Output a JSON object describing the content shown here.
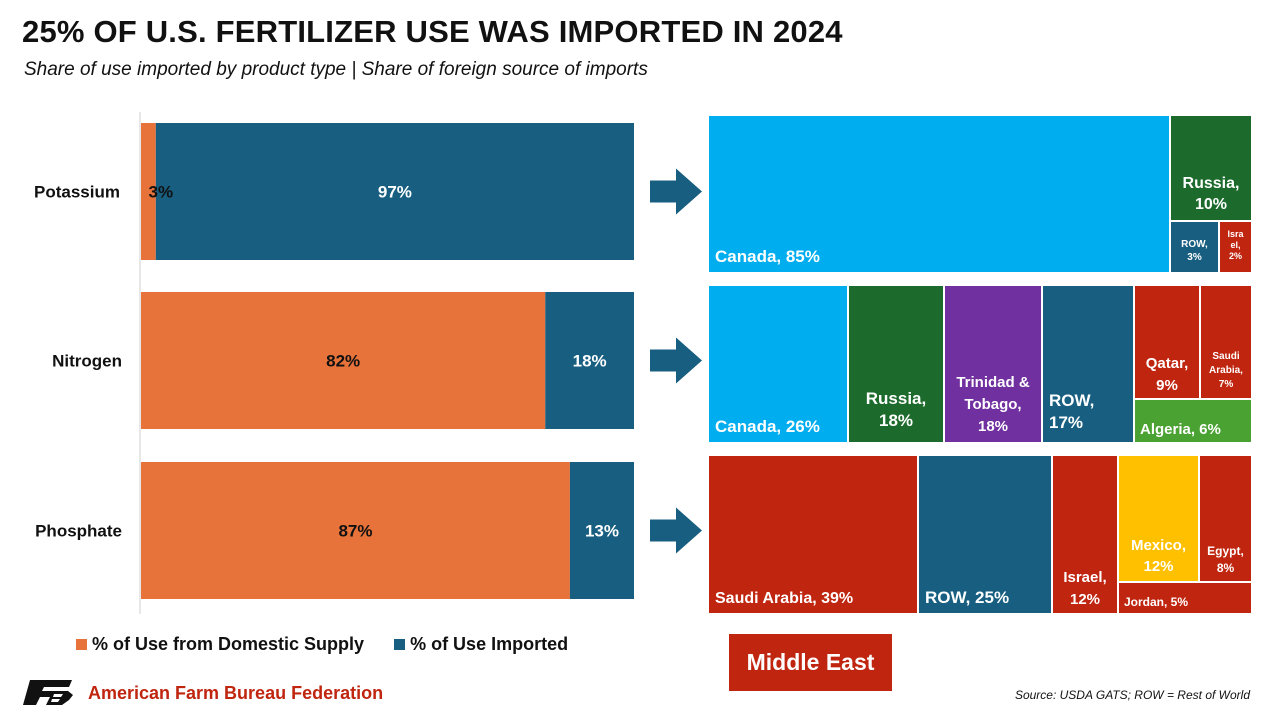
{
  "title": "25% OF U.S. FERTILIZER USE WAS IMPORTED IN 2024",
  "subtitle": "Share of use imported by product type  |  Share of foreign source of imports",
  "colors": {
    "domestic": "#e8733a",
    "imported": "#175e80",
    "canada": "#00aeef",
    "russia": "#1d6b2c",
    "middle_east": "#c0250f",
    "trinidad": "#7030a0",
    "algeria": "#4aa232",
    "mexico": "#ffc000",
    "arrow": "#175e80"
  },
  "chart_data": [
    {
      "type": "bar",
      "orientation": "horizontal",
      "stacked": true,
      "categories": [
        "Potassium",
        "Nitrogen",
        "Phosphate"
      ],
      "series": [
        {
          "name": "% of Use from Domestic Supply",
          "values": [
            3,
            82,
            87
          ],
          "labels": [
            "3%",
            "82%",
            "87%"
          ]
        },
        {
          "name": "% of Use Imported",
          "values": [
            97,
            18,
            13
          ],
          "labels": [
            "97%",
            "18%",
            "13%"
          ]
        }
      ],
      "xlim": [
        0,
        100
      ],
      "legend": "bottom"
    },
    {
      "type": "treemap",
      "group": "Potassium",
      "items": [
        {
          "name": "Canada",
          "value": 85,
          "label": "Canada, 85%",
          "color_key": "canada"
        },
        {
          "name": "Russia",
          "value": 10,
          "label": "Russia, 10%",
          "color_key": "russia"
        },
        {
          "name": "ROW",
          "value": 3,
          "label": "ROW, 3%",
          "color_key": "imported"
        },
        {
          "name": "Israel",
          "value": 2,
          "label": "Israel, 2%",
          "color_key": "middle_east"
        }
      ]
    },
    {
      "type": "treemap",
      "group": "Nitrogen",
      "items": [
        {
          "name": "Canada",
          "value": 26,
          "label": "Canada, 26%",
          "color_key": "canada"
        },
        {
          "name": "Russia",
          "value": 18,
          "label": "Russia, 18%",
          "color_key": "russia"
        },
        {
          "name": "Trinidad & Tobago",
          "value": 18,
          "label": "Trinidad & Tobago, 18%",
          "color_key": "trinidad"
        },
        {
          "name": "ROW",
          "value": 17,
          "label": "ROW, 17%",
          "color_key": "imported"
        },
        {
          "name": "Qatar",
          "value": 9,
          "label": "Qatar, 9%",
          "color_key": "middle_east"
        },
        {
          "name": "Saudi Arabia",
          "value": 7,
          "label": "Saudi Arabia, 7%",
          "color_key": "middle_east"
        },
        {
          "name": "Algeria",
          "value": 6,
          "label": "Algeria, 6%",
          "color_key": "algeria"
        }
      ]
    },
    {
      "type": "treemap",
      "group": "Phosphate",
      "items": [
        {
          "name": "Saudi Arabia",
          "value": 39,
          "label": "Saudi Arabia, 39%",
          "color_key": "middle_east"
        },
        {
          "name": "ROW",
          "value": 25,
          "label": "ROW, 25%",
          "color_key": "imported"
        },
        {
          "name": "Israel",
          "value": 12,
          "label": "Israel, 12%",
          "color_key": "middle_east"
        },
        {
          "name": "Mexico",
          "value": 12,
          "label": "Mexico, 12%",
          "color_key": "mexico"
        },
        {
          "name": "Egypt",
          "value": 8,
          "label": "Egypt, 8%",
          "color_key": "middle_east"
        },
        {
          "name": "Jordan",
          "value": 5,
          "label": "Jordan, 5%",
          "color_key": "middle_east"
        }
      ]
    }
  ],
  "legend": {
    "domestic_label": "% of Use from Domestic Supply",
    "imported_label": "% of Use Imported",
    "middle_east_label": "Middle East"
  },
  "footer": {
    "organization": "American Farm Bureau Federation",
    "source": "Source: USDA GATS; ROW = Rest of World",
    "logo_icon": "afbf-logo-icon"
  }
}
